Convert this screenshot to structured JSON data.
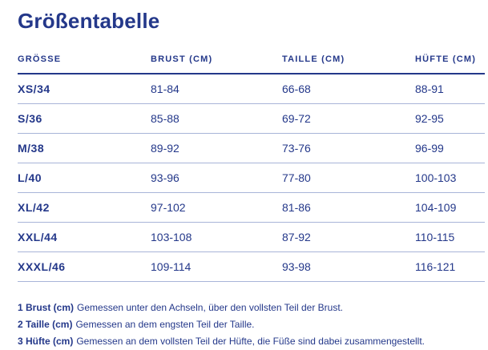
{
  "title": "Größentabelle",
  "colors": {
    "navy_text": "#24388a",
    "header_rule": "#24388a",
    "row_divider": "#a8b4d8",
    "background": "#ffffff"
  },
  "table": {
    "headers": [
      "GRÖSSE",
      "BRUST (CM)",
      "TAILLE (CM)",
      "HÜFTE (CM)"
    ],
    "rows": [
      {
        "size": "XS/34",
        "brust": "81-84",
        "taille": "66-68",
        "huefte": "88-91"
      },
      {
        "size": "S/36",
        "brust": "85-88",
        "taille": "69-72",
        "huefte": "92-95"
      },
      {
        "size": "M/38",
        "brust": "89-92",
        "taille": "73-76",
        "huefte": "96-99"
      },
      {
        "size": "L/40",
        "brust": "93-96",
        "taille": "77-80",
        "huefte": "100-103"
      },
      {
        "size": "XL/42",
        "brust": "97-102",
        "taille": "81-86",
        "huefte": "104-109"
      },
      {
        "size": "XXL/44",
        "brust": "103-108",
        "taille": "87-92",
        "huefte": "110-115"
      },
      {
        "size": "XXXL/46",
        "brust": "109-114",
        "taille": "93-98",
        "huefte": "116-121"
      }
    ]
  },
  "footnotes": [
    {
      "label": "1 Brust (cm)",
      "text": "Gemessen unter den Achseln, über den vollsten Teil der Brust."
    },
    {
      "label": "2 Taille (cm)",
      "text": "Gemessen an dem engsten Teil der Taille."
    },
    {
      "label": "3 Hüfte (cm)",
      "text": "Gemessen an dem vollsten Teil der Hüfte, die Füße sind dabei zusammengestellt."
    }
  ]
}
